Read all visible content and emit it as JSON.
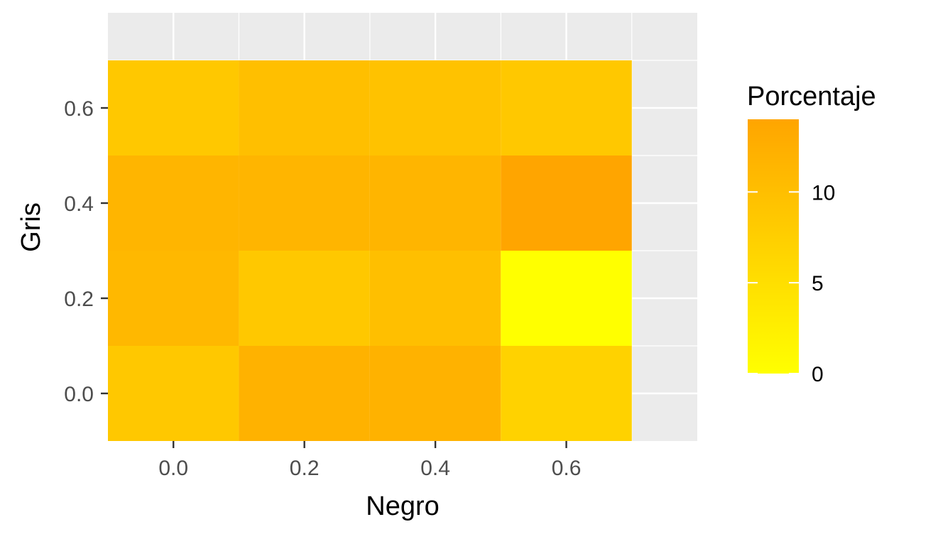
{
  "chart_data": {
    "type": "heatmap",
    "title": "",
    "xlabel": "Negro",
    "ylabel": "Gris",
    "x": [
      0.0,
      0.2,
      0.4,
      0.6
    ],
    "y": [
      0.0,
      0.2,
      0.4,
      0.6
    ],
    "x_tick_labels": [
      "0.0",
      "0.2",
      "0.4",
      "0.6"
    ],
    "y_tick_labels": [
      "0.0",
      "0.2",
      "0.4",
      "0.6"
    ],
    "xlim": [
      -0.1,
      0.8
    ],
    "ylim": [
      -0.1,
      0.8
    ],
    "values": [
      [
        8.5,
        12.0,
        12.0,
        7.0
      ],
      [
        11.0,
        8.5,
        10.0,
        0.0
      ],
      [
        11.5,
        11.5,
        11.5,
        14.0
      ],
      [
        8.5,
        10.0,
        9.5,
        8.5
      ]
    ],
    "values_note_rows": "rows follow y order (Gris), columns follow x order (Negro)",
    "grid": true,
    "legend": {
      "title": "Porcentaje",
      "position": "right",
      "range": [
        0,
        14
      ],
      "ticks": [
        0,
        5,
        10
      ],
      "tick_labels": [
        "0",
        "5",
        "10"
      ],
      "low_color": "#ffff00",
      "high_color": "#ffa500"
    },
    "panel_background": "#ebebeb",
    "grid_color": "#ffffff"
  }
}
